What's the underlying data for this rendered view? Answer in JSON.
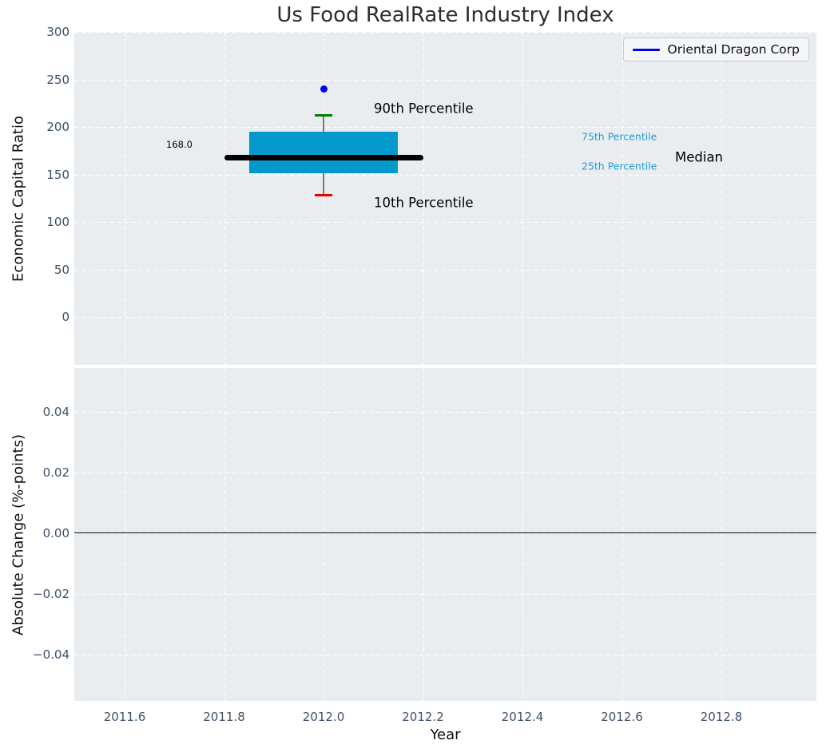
{
  "title": "Us Food RealRate Industry Index",
  "legend": {
    "label": "Oriental Dragon Corp"
  },
  "colors": {
    "panel_bg": "#e9edf0",
    "grid": "#ffffff",
    "tick_label": "#3e5166",
    "box_fill": "#0499cd",
    "median_line": "#000000",
    "whisker": "#7a7a7a",
    "p90_cap": "#008000",
    "p10_cap": "#e80000",
    "company_point": "#0000ee",
    "legend_line": "#0000ee",
    "percentile_text": "#219fd4",
    "zero_line": "#000000"
  },
  "annotations": {
    "p90": "90th Percentile",
    "p10": "10th Percentile",
    "p75": "75th Percentile",
    "p25": "25th Percentile",
    "median": "Median",
    "median_value": "168.0"
  },
  "chart_data": [
    {
      "type": "boxplot",
      "title": "Us Food RealRate Industry Index",
      "ylabel": "Economic Capital Ratio",
      "x_center": 2012.0,
      "box_x": [
        2011.85,
        2012.15
      ],
      "median_line_x": [
        2011.8,
        2012.2
      ],
      "median": 168.0,
      "q25": 151,
      "q75": 195,
      "p10": 128,
      "p90": 212,
      "series": [
        {
          "name": "Oriental Dragon Corp",
          "x": [
            2012.0
          ],
          "values": [
            240
          ],
          "type": "scatter"
        }
      ],
      "yticks": [
        {
          "label": "300",
          "v": 300
        },
        {
          "label": "250",
          "v": 250
        },
        {
          "label": "200",
          "v": 200
        },
        {
          "label": "150",
          "v": 150
        },
        {
          "label": "100",
          "v": 100
        },
        {
          "label": "50",
          "v": 50
        },
        {
          "label": "0",
          "v": 0
        }
      ],
      "ylim": [
        -55,
        300
      ],
      "xlim": [
        2011.5,
        2012.99
      ],
      "grid": true,
      "legend_position": "upper right"
    },
    {
      "type": "line",
      "ylabel": "Absolute Change (%-points)",
      "xlabel": "Year",
      "zero_line": 0.0,
      "yticks": [
        {
          "label": "0.04",
          "v": 0.04
        },
        {
          "label": "0.02",
          "v": 0.02
        },
        {
          "label": "0.00",
          "v": 0.0
        },
        {
          "label": "−0.02",
          "v": -0.02
        },
        {
          "label": "−0.04",
          "v": -0.04
        }
      ],
      "xticks": [
        {
          "label": "2011.6",
          "v": 2011.6
        },
        {
          "label": "2011.8",
          "v": 2011.8
        },
        {
          "label": "2012.0",
          "v": 2012.0
        },
        {
          "label": "2012.2",
          "v": 2012.2
        },
        {
          "label": "2012.4",
          "v": 2012.4
        },
        {
          "label": "2012.6",
          "v": 2012.6
        },
        {
          "label": "2012.8",
          "v": 2012.8
        }
      ],
      "ylim": [
        -0.055,
        0.0545
      ],
      "xlim": [
        2011.5,
        2012.99
      ],
      "grid": true
    }
  ]
}
